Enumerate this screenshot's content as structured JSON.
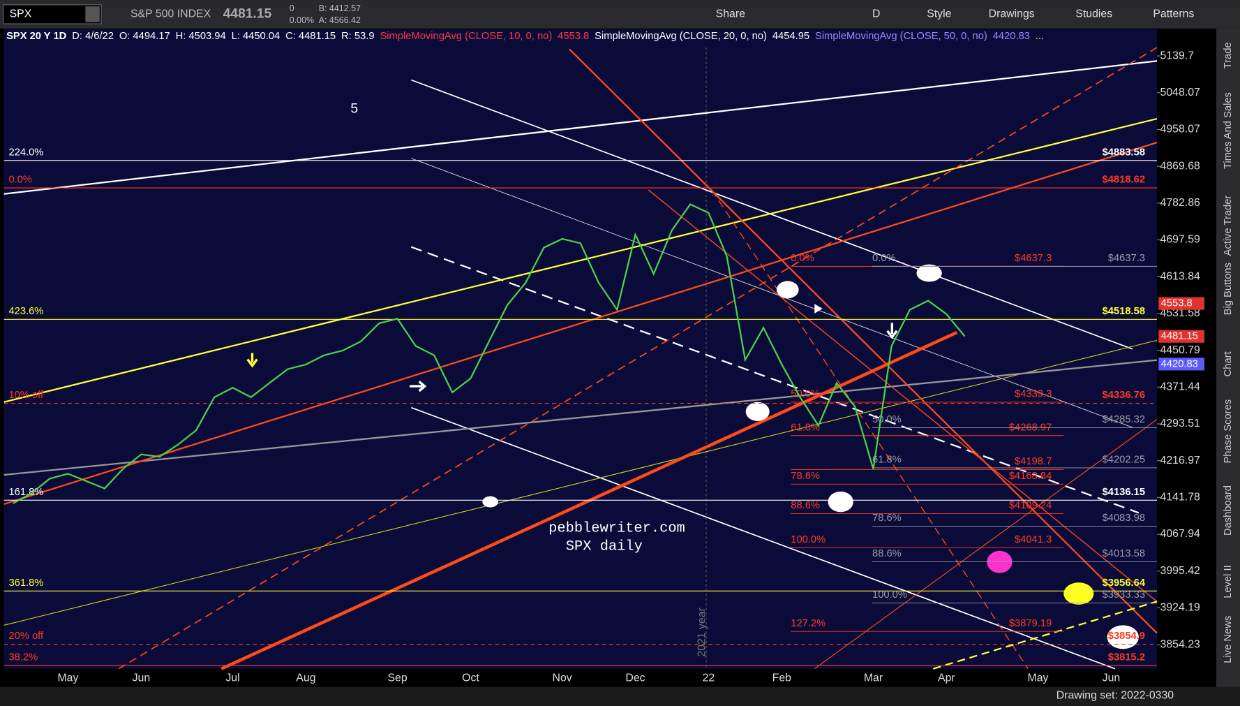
{
  "toolbar": {
    "symbol": "SPX",
    "description": "S&P 500 INDEX",
    "last": "4481.15",
    "change": "0",
    "change_pct": "0.00%",
    "bid": "B: 4412.57",
    "ask": "A: 4566.42",
    "buttons": [
      "Share",
      "D",
      "Style",
      "Drawings",
      "Studies",
      "Patterns"
    ]
  },
  "header": [
    {
      "text": "SPX 20 Y 1D",
      "color": "#ffffff"
    },
    {
      "text": "D: 4/6/22",
      "color": "#ffffff"
    },
    {
      "text": "O: 4494.17",
      "color": "#ffffff"
    },
    {
      "text": "H: 4503.94",
      "color": "#ffffff"
    },
    {
      "text": "L: 4450.04",
      "color": "#ffffff"
    },
    {
      "text": "C: 4481.15",
      "color": "#ffffff"
    },
    {
      "text": "R: 53.9",
      "color": "#ffffff"
    },
    {
      "text": "SimpleMovingAvg (CLOSE, 10, 0, no)",
      "color": "#ff3b3b"
    },
    {
      "text": "4553.8",
      "color": "#ff3b3b"
    },
    {
      "text": "SimpleMovingAvg (CLOSE, 20, 0, no)",
      "color": "#ffffff"
    },
    {
      "text": "4454.95",
      "color": "#ffffff"
    },
    {
      "text": "SimpleMovingAvg (CLOSE, 50, 0, no)",
      "color": "#8f8fff"
    },
    {
      "text": "4420.83",
      "color": "#8f8fff"
    },
    {
      "text": "...",
      "color": "#ffff33"
    }
  ],
  "sidebar_tabs": [
    "Trade",
    "Times And Sales",
    "Active Trader",
    "Big Buttons",
    "Chart",
    "Phase Scores",
    "Dashboard",
    "Level II",
    "Live News"
  ],
  "status": "Drawing set: 2022-0330",
  "annotations": {
    "wave": "5",
    "site": "pebblewriter.com",
    "caption": "SPX daily",
    "year_marker": "2021 year"
  },
  "chart_data": {
    "type": "line",
    "log_scale": true,
    "color": "#4bd14b",
    "categories": [
      null,
      null,
      null,
      "May",
      null,
      null,
      null,
      "Jun",
      null,
      null,
      null,
      null,
      "Jul",
      null,
      null,
      null,
      "Aug",
      null,
      null,
      null,
      null,
      "Sep",
      null,
      null,
      null,
      "Oct",
      null,
      null,
      null,
      null,
      "Nov",
      null,
      null,
      null,
      "Dec",
      null,
      null,
      null,
      "22",
      null,
      null,
      null,
      "Feb",
      null,
      null,
      null,
      null,
      "Mar",
      null,
      null,
      null,
      "Apr",
      null,
      null,
      null,
      null,
      "May",
      null,
      null,
      null,
      "Jun",
      null,
      null
    ],
    "values": [
      4130,
      4150,
      4180,
      4190,
      4175,
      4160,
      4200,
      4230,
      4225,
      4250,
      4280,
      4350,
      4370,
      4350,
      4380,
      4410,
      4420,
      4440,
      4450,
      4470,
      4510,
      4520,
      4460,
      4440,
      4360,
      4390,
      4470,
      4550,
      4600,
      4680,
      4700,
      4690,
      4600,
      4540,
      4710,
      4620,
      4720,
      4780,
      4760,
      4660,
      4430,
      4500,
      4420,
      4350,
      4290,
      4380,
      4330,
      4200,
      4460,
      4540,
      4560,
      4530,
      4481.15,
      null,
      null,
      null,
      null,
      null,
      null,
      null,
      null,
      null,
      null
    ],
    "ylim": [
      3809,
      5207
    ],
    "yticks": [
      5139.7,
      5048.07,
      4958.07,
      4869.68,
      4782.86,
      4697.59,
      4613.84,
      4531.58,
      4450.79,
      4371.44,
      4293.51,
      4216.97,
      4141.78,
      4067.94,
      3995.42,
      3924.19,
      3854.23
    ],
    "price_badges": [
      {
        "value": 4553.8,
        "color": "#e0332f"
      },
      {
        "value": 4481.15,
        "color": "#e0332f"
      },
      {
        "value": 4420.83,
        "color": "#5a5aff"
      }
    ],
    "margin_levels": [
      {
        "name": "224.0%",
        "value": 4883.58,
        "label": "$4883.58",
        "color": "#ffffff"
      },
      {
        "name": "0.0%",
        "value": 4818.62,
        "label": "$4818.62",
        "color": "#ff3b1f"
      },
      {
        "name": "423.6%",
        "value": 4518.58,
        "label": "$4518.58",
        "color": "#ffff33"
      },
      {
        "name": "10% off",
        "value": 4336.76,
        "label": "$4336.76",
        "color": "#ff3b1f",
        "dashed": true
      },
      {
        "name": "161.8%",
        "value": 4136.15,
        "label": "$4136.15",
        "color": "#ffffff"
      },
      {
        "name": "361.8%",
        "value": 3956.64,
        "label": "$3956.64",
        "color": "#ffff33"
      },
      {
        "name": "20% off",
        "value": 3854.9,
        "label": "$3854.9",
        "color": "#ff3b1f",
        "dashed": true
      },
      {
        "name": "38.2%",
        "value": 3815.2,
        "label": "$3815.2",
        "color": "#ff3b1f"
      }
    ],
    "fib_red": {
      "color": "#ff3b1f",
      "levels": [
        {
          "name": "0.0%",
          "value": 4637.3,
          "label": "$4637.3"
        },
        {
          "name": "50.0%",
          "value": 4339.3,
          "label": "$4339.3"
        },
        {
          "name": "61.8%",
          "value": 4268.97,
          "label": "$4268.97"
        },
        {
          "value": 4198.7,
          "label": "$4198.7"
        },
        {
          "name": "78.6%",
          "value": 4168.84,
          "label": "$4168.84"
        },
        {
          "name": "88.6%",
          "value": 4109.24,
          "label": "$4109.24"
        },
        {
          "name": "100.0%",
          "value": 4041.3,
          "label": "$4041.3"
        },
        {
          "name": "127.2%",
          "value": 3879.19,
          "label": "$3879.19"
        }
      ]
    },
    "fib_grey": {
      "color": "#9a9aa8",
      "levels": [
        {
          "name": "0.0%",
          "value": 4637.3,
          "label": "$4637.3"
        },
        {
          "name": "50.0%",
          "value": 4285.32,
          "label": "$4285.32"
        },
        {
          "name": "61.8%",
          "value": 4202.25,
          "label": "$4202.25"
        },
        {
          "name": "78.6%",
          "value": 4083.98,
          "label": "$4083.98"
        },
        {
          "name": "88.6%",
          "value": 4013.58,
          "label": "$4013.58"
        },
        {
          "name": "100.0%",
          "value": 3933.33,
          "label": "$3933.33"
        }
      ]
    }
  }
}
